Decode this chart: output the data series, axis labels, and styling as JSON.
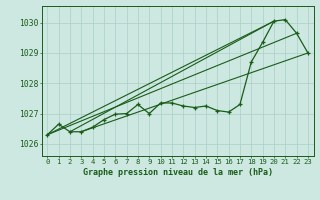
{
  "title": "Graphe pression niveau de la mer (hPa)",
  "background_color": "#cce8e0",
  "line_color": "#1a5c1a",
  "grid_color": "#aacfc8",
  "x_ticks": [
    0,
    1,
    2,
    3,
    4,
    5,
    6,
    7,
    8,
    9,
    10,
    11,
    12,
    13,
    14,
    15,
    16,
    17,
    18,
    19,
    20,
    21,
    22,
    23
  ],
  "y_ticks": [
    1026,
    1027,
    1028,
    1029,
    1030
  ],
  "ylim": [
    1025.6,
    1030.55
  ],
  "xlim": [
    -0.5,
    23.5
  ],
  "series_main": [
    1026.3,
    1026.65,
    1026.4,
    1026.4,
    1026.55,
    1026.8,
    1026.98,
    1027.0,
    1027.3,
    1027.0,
    1027.35,
    1027.35,
    1027.25,
    1027.2,
    1027.25,
    1027.1,
    1027.05,
    1027.3,
    1028.7,
    1029.35,
    1030.05,
    1030.1,
    1029.65,
    1029.0
  ],
  "series_straight": [
    [
      0,
      1026.3,
      20,
      1030.05
    ],
    [
      0,
      1026.3,
      22,
      1029.65
    ],
    [
      2,
      1026.4,
      20,
      1030.05
    ],
    [
      3,
      1026.4,
      23,
      1029.0
    ]
  ]
}
